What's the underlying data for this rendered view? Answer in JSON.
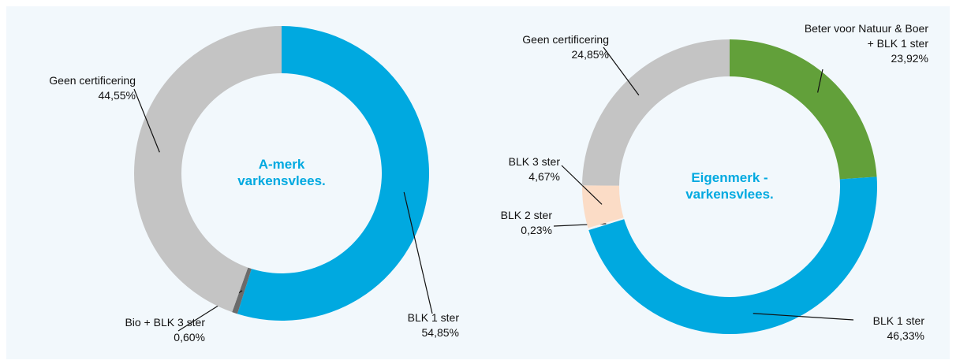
{
  "chart_data": [
    {
      "type": "donut",
      "title": "A-merk varkensvlees.",
      "categories": [
        "BLK 1 ster",
        "Bio + BLK 3 ster",
        "Geen certificering"
      ],
      "values": [
        54.85,
        0.6,
        44.55
      ],
      "value_labels": [
        "54,85%",
        "0,60%",
        "44,55%"
      ],
      "colors": [
        "#00a9e0",
        "#6b6b6b",
        "#c4c4c4"
      ]
    },
    {
      "type": "donut",
      "title": "Eigenmerk - varkensvlees.",
      "categories": [
        "Beter voor Natuur & Boer + BLK 1 ster",
        "BLK 1 ster",
        "BLK 2 ster",
        "BLK 3 ster",
        "Geen certificering"
      ],
      "values": [
        23.92,
        46.33,
        0.23,
        4.67,
        24.85
      ],
      "value_labels": [
        "23,92%",
        "46,33%",
        "0,23%",
        "4,67%",
        "24,85%"
      ],
      "colors": [
        "#62a03a",
        "#00a9e0",
        "#f4f4f4",
        "#fbdcc6",
        "#c4c4c4"
      ]
    }
  ]
}
